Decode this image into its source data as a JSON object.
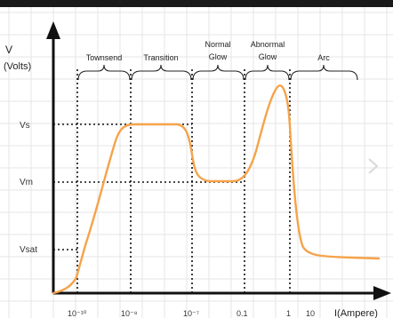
{
  "chart_data": {
    "type": "line",
    "ylabel": "V",
    "ylabel_unit": "(Volts)",
    "xlabel": "I(Ampere)",
    "x_tick_labels": [
      "10⁻¹⁰",
      "10⁻⁸",
      "10⁻⁷",
      "0.1",
      "1",
      "10"
    ],
    "y_tick_labels": [
      "Vs",
      "Vm",
      "Vsat"
    ],
    "regions": [
      "Townsend",
      "Transition",
      "Normal Glow",
      "Abnormal Glow",
      "Arc"
    ],
    "series": [
      {
        "x": [
          "10⁻¹⁰",
          "10⁻⁸",
          "10⁻⁷",
          "0.1",
          "1",
          "10"
        ],
        "curve_points": [
          {
            "x": "10⁻¹⁰",
            "y": "Vsat"
          },
          {
            "x": "10⁻⁸",
            "y": "Vs"
          },
          {
            "x": "10⁻⁷",
            "y": "Vm"
          },
          {
            "x": "0.1",
            "y": "Vm"
          },
          {
            "x": "1",
            "y": "peak"
          },
          {
            "x": "10",
            "y": "low"
          }
        ]
      }
    ],
    "grid": true,
    "colors": {
      "curve": "#f5a34a",
      "axes": "#111111",
      "guides": "#111111",
      "grid": "#e6e6e6"
    }
  }
}
